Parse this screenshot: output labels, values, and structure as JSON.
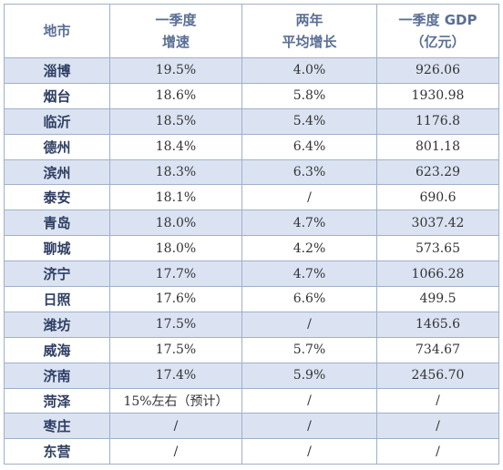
{
  "header": {
    "city": "地市",
    "q1_growth": [
      "一季度",
      "增速"
    ],
    "two_year": [
      "两年",
      "平均增长"
    ],
    "gdp": [
      "一季度 GDP",
      "（亿元）"
    ]
  },
  "rows": [
    {
      "city": "淄博",
      "growth": "19.5%",
      "avg": "4.0%",
      "gdp": "926.06"
    },
    {
      "city": "烟台",
      "growth": "18.6%",
      "avg": "5.8%",
      "gdp": "1930.98"
    },
    {
      "city": "临沂",
      "growth": "18.5%",
      "avg": "5.4%",
      "gdp": "1176.8"
    },
    {
      "city": "德州",
      "growth": "18.4%",
      "avg": "6.4%",
      "gdp": "801.18"
    },
    {
      "city": "滨州",
      "growth": "18.3%",
      "avg": "6.3%",
      "gdp": "623.29"
    },
    {
      "city": "泰安",
      "growth": "18.1%",
      "avg": "/",
      "gdp": "690.6"
    },
    {
      "city": "青岛",
      "growth": "18.0%",
      "avg": "4.7%",
      "gdp": "3037.42"
    },
    {
      "city": "聊城",
      "growth": "18.0%",
      "avg": "4.2%",
      "gdp": "573.65"
    },
    {
      "city": "济宁",
      "growth": "17.7%",
      "avg": "4.7%",
      "gdp": "1066.28"
    },
    {
      "city": "日照",
      "growth": "17.6%",
      "avg": "6.6%",
      "gdp": "499.5"
    },
    {
      "city": "潍坊",
      "growth": "17.5%",
      "avg": "/",
      "gdp": "1465.6"
    },
    {
      "city": "威海",
      "growth": "17.5%",
      "avg": "5.7%",
      "gdp": "734.67"
    },
    {
      "city": "济南",
      "growth": "17.4%",
      "avg": "5.9%",
      "gdp": "2456.70"
    },
    {
      "city": "菏泽",
      "growth": "15%左右（预计）",
      "avg": "/",
      "gdp": "/"
    },
    {
      "city": "枣庄",
      "growth": "/",
      "avg": "/",
      "gdp": "/"
    },
    {
      "city": "东营",
      "growth": "/",
      "avg": "/",
      "gdp": "/"
    }
  ],
  "colors": {
    "header_text": "#5a6f95",
    "stripe": "#dbe3f3",
    "border": "#9fb0c9",
    "city_text": "#2f3f63"
  }
}
